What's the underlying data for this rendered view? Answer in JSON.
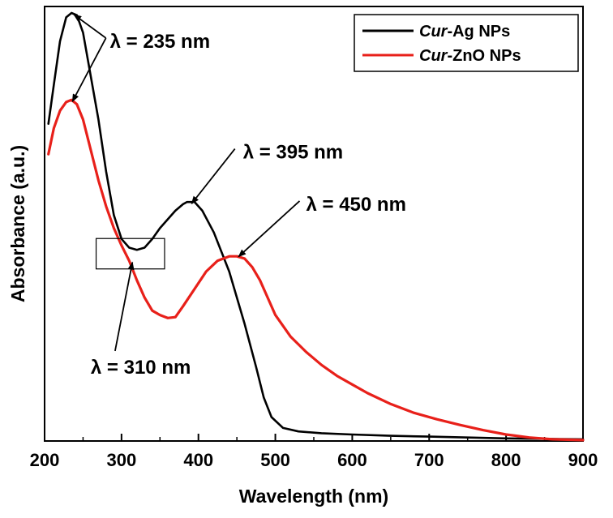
{
  "chart_data": {
    "type": "line",
    "title": "",
    "xlabel": "Wavelength (nm)",
    "ylabel": "Absorbance (a.u.)",
    "xlim": [
      200,
      900
    ],
    "ylim": [
      0,
      1.0
    ],
    "x_ticks": [
      "200",
      "300",
      "400",
      "500",
      "600",
      "700",
      "800",
      "900"
    ],
    "y_ticks_shown": false,
    "legend_position": "top-right",
    "series": [
      {
        "name_italic": "Cur",
        "name_rest": "-Ag NPs",
        "color": "#000000",
        "points": [
          [
            205,
            0.73
          ],
          [
            212,
            0.82
          ],
          [
            220,
            0.92
          ],
          [
            228,
            0.975
          ],
          [
            235,
            0.985
          ],
          [
            242,
            0.98
          ],
          [
            250,
            0.94
          ],
          [
            260,
            0.84
          ],
          [
            270,
            0.74
          ],
          [
            280,
            0.62
          ],
          [
            290,
            0.52
          ],
          [
            300,
            0.465
          ],
          [
            310,
            0.445
          ],
          [
            320,
            0.44
          ],
          [
            330,
            0.445
          ],
          [
            340,
            0.465
          ],
          [
            350,
            0.49
          ],
          [
            360,
            0.51
          ],
          [
            370,
            0.53
          ],
          [
            380,
            0.545
          ],
          [
            385,
            0.55
          ],
          [
            395,
            0.55
          ],
          [
            405,
            0.53
          ],
          [
            420,
            0.48
          ],
          [
            440,
            0.39
          ],
          [
            460,
            0.27
          ],
          [
            475,
            0.17
          ],
          [
            485,
            0.1
          ],
          [
            495,
            0.055
          ],
          [
            510,
            0.03
          ],
          [
            530,
            0.022
          ],
          [
            560,
            0.018
          ],
          [
            600,
            0.015
          ],
          [
            650,
            0.012
          ],
          [
            700,
            0.01
          ],
          [
            800,
            0.006
          ],
          [
            900,
            0.004
          ]
        ]
      },
      {
        "name_italic": "Cur",
        "name_rest": "-ZnO NPs",
        "color": "#e8201a",
        "points": [
          [
            205,
            0.66
          ],
          [
            212,
            0.72
          ],
          [
            220,
            0.76
          ],
          [
            228,
            0.78
          ],
          [
            235,
            0.785
          ],
          [
            242,
            0.775
          ],
          [
            250,
            0.74
          ],
          [
            260,
            0.67
          ],
          [
            270,
            0.6
          ],
          [
            280,
            0.54
          ],
          [
            290,
            0.49
          ],
          [
            300,
            0.45
          ],
          [
            310,
            0.415
          ],
          [
            320,
            0.37
          ],
          [
            330,
            0.33
          ],
          [
            340,
            0.3
          ],
          [
            350,
            0.29
          ],
          [
            360,
            0.283
          ],
          [
            370,
            0.285
          ],
          [
            380,
            0.31
          ],
          [
            395,
            0.35
          ],
          [
            410,
            0.39
          ],
          [
            425,
            0.415
          ],
          [
            440,
            0.425
          ],
          [
            450,
            0.425
          ],
          [
            460,
            0.42
          ],
          [
            470,
            0.4
          ],
          [
            480,
            0.37
          ],
          [
            490,
            0.33
          ],
          [
            500,
            0.29
          ],
          [
            520,
            0.24
          ],
          [
            540,
            0.205
          ],
          [
            560,
            0.175
          ],
          [
            580,
            0.15
          ],
          [
            600,
            0.13
          ],
          [
            620,
            0.11
          ],
          [
            650,
            0.085
          ],
          [
            680,
            0.065
          ],
          [
            710,
            0.05
          ],
          [
            740,
            0.037
          ],
          [
            770,
            0.025
          ],
          [
            800,
            0.015
          ],
          [
            830,
            0.008
          ],
          [
            860,
            0.004
          ],
          [
            900,
            0.002
          ]
        ]
      }
    ],
    "annotations": [
      {
        "text": "λ = 235 nm",
        "targets": [
          [
            235,
            0.985
          ],
          [
            233,
            0.785
          ]
        ],
        "text_pos": [
          285,
          0.905
        ]
      },
      {
        "text": "λ = 395 nm",
        "targets": [
          [
            388,
            0.55
          ]
        ],
        "text_pos": [
          458,
          0.65
        ]
      },
      {
        "text": "λ = 450 nm",
        "targets": [
          [
            449,
            0.428
          ]
        ],
        "text_pos": [
          540,
          0.53
        ]
      },
      {
        "text": "λ = 310 nm",
        "targets": [
          [
            311,
            0.415
          ]
        ],
        "text_pos": [
          260,
          0.155
        ]
      }
    ],
    "inset_box": {
      "x": [
        267,
        356
      ],
      "y": [
        0.396,
        0.466
      ]
    }
  }
}
